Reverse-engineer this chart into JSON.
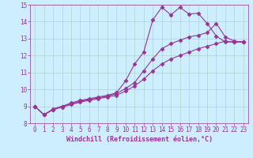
{
  "xlabel": "Windchill (Refroidissement éolien,°C)",
  "background_color": "#cceeff",
  "grid_color": "#aaccbb",
  "line_color": "#993399",
  "xlim": [
    -0.5,
    23.5
  ],
  "ylim": [
    8,
    15
  ],
  "xticks": [
    0,
    1,
    2,
    3,
    4,
    5,
    6,
    7,
    8,
    9,
    10,
    11,
    12,
    13,
    14,
    15,
    16,
    17,
    18,
    19,
    20,
    21,
    22,
    23
  ],
  "yticks": [
    8,
    9,
    10,
    11,
    12,
    13,
    14,
    15
  ],
  "series": [
    {
      "x": [
        0,
        1,
        2,
        3,
        4,
        5,
        6,
        7,
        8,
        9,
        10,
        11,
        12,
        13,
        14,
        15,
        16,
        17,
        18,
        19,
        20,
        21,
        22,
        23
      ],
      "y": [
        9.0,
        8.5,
        8.8,
        9.0,
        9.2,
        9.35,
        9.45,
        9.55,
        9.65,
        9.8,
        10.5,
        11.5,
        12.2,
        14.1,
        14.85,
        14.4,
        14.85,
        14.45,
        14.5,
        13.9,
        13.15,
        12.8,
        12.8,
        12.8
      ]
    },
    {
      "x": [
        0,
        1,
        2,
        3,
        4,
        5,
        6,
        7,
        8,
        9,
        10,
        11,
        12,
        13,
        14,
        15,
        16,
        17,
        18,
        19,
        20,
        21,
        22,
        23
      ],
      "y": [
        9.0,
        8.5,
        8.85,
        9.0,
        9.15,
        9.3,
        9.4,
        9.5,
        9.6,
        9.75,
        10.05,
        10.4,
        11.1,
        11.8,
        12.4,
        12.7,
        12.9,
        13.1,
        13.2,
        13.35,
        13.9,
        13.1,
        12.85,
        12.8
      ]
    },
    {
      "x": [
        0,
        1,
        2,
        3,
        4,
        5,
        6,
        7,
        8,
        9,
        10,
        11,
        12,
        13,
        14,
        15,
        16,
        17,
        18,
        19,
        20,
        21,
        22,
        23
      ],
      "y": [
        9.0,
        8.5,
        8.8,
        8.95,
        9.1,
        9.25,
        9.35,
        9.45,
        9.55,
        9.65,
        9.9,
        10.2,
        10.6,
        11.1,
        11.5,
        11.8,
        12.0,
        12.2,
        12.4,
        12.55,
        12.7,
        12.85,
        12.8,
        12.8
      ]
    }
  ],
  "marker": "D",
  "markersize": 2.5,
  "linewidth": 0.8,
  "xlabel_fontsize": 6,
  "tick_fontsize": 5.5
}
